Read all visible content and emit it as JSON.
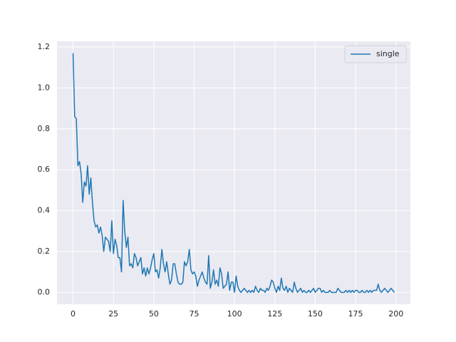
{
  "chart_data": {
    "type": "line",
    "x": [
      0,
      1,
      2,
      3,
      4,
      5,
      6,
      7,
      8,
      9,
      10,
      11,
      12,
      13,
      14,
      15,
      16,
      17,
      18,
      19,
      20,
      21,
      22,
      23,
      24,
      25,
      26,
      27,
      28,
      29,
      30,
      31,
      32,
      33,
      34,
      35,
      36,
      37,
      38,
      39,
      40,
      41,
      42,
      43,
      44,
      45,
      46,
      47,
      48,
      49,
      50,
      51,
      52,
      53,
      54,
      55,
      56,
      57,
      58,
      59,
      60,
      61,
      62,
      63,
      64,
      65,
      66,
      67,
      68,
      69,
      70,
      71,
      72,
      73,
      74,
      75,
      76,
      77,
      78,
      79,
      80,
      81,
      82,
      83,
      84,
      85,
      86,
      87,
      88,
      89,
      90,
      91,
      92,
      93,
      94,
      95,
      96,
      97,
      98,
      99,
      100,
      101,
      102,
      103,
      104,
      105,
      106,
      107,
      108,
      109,
      110,
      111,
      112,
      113,
      114,
      115,
      116,
      117,
      118,
      119,
      120,
      121,
      122,
      123,
      124,
      125,
      126,
      127,
      128,
      129,
      130,
      131,
      132,
      133,
      134,
      135,
      136,
      137,
      138,
      139,
      140,
      141,
      142,
      143,
      144,
      145,
      146,
      147,
      148,
      149,
      150,
      151,
      152,
      153,
      154,
      155,
      156,
      157,
      158,
      159,
      160,
      161,
      162,
      163,
      164,
      165,
      166,
      167,
      168,
      169,
      170,
      171,
      172,
      173,
      174,
      175,
      176,
      177,
      178,
      179,
      180,
      181,
      182,
      183,
      184,
      185,
      186,
      187,
      188,
      189,
      190,
      191,
      192,
      193,
      194,
      195,
      196,
      197,
      198,
      199
    ],
    "series": [
      {
        "name": "single",
        "color": "#1f77b4",
        "values": [
          1.17,
          0.86,
          0.85,
          0.62,
          0.64,
          0.58,
          0.44,
          0.54,
          0.52,
          0.62,
          0.48,
          0.56,
          0.44,
          0.35,
          0.32,
          0.33,
          0.29,
          0.32,
          0.28,
          0.2,
          0.27,
          0.26,
          0.25,
          0.2,
          0.35,
          0.19,
          0.26,
          0.23,
          0.17,
          0.17,
          0.1,
          0.45,
          0.3,
          0.22,
          0.27,
          0.13,
          0.14,
          0.12,
          0.19,
          0.17,
          0.13,
          0.15,
          0.17,
          0.09,
          0.12,
          0.08,
          0.12,
          0.09,
          0.12,
          0.16,
          0.19,
          0.1,
          0.11,
          0.07,
          0.12,
          0.21,
          0.14,
          0.1,
          0.15,
          0.09,
          0.04,
          0.06,
          0.14,
          0.14,
          0.09,
          0.05,
          0.04,
          0.04,
          0.05,
          0.15,
          0.13,
          0.15,
          0.21,
          0.11,
          0.09,
          0.1,
          0.08,
          0.03,
          0.06,
          0.08,
          0.1,
          0.07,
          0.05,
          0.04,
          0.18,
          0.02,
          0.05,
          0.11,
          0.04,
          0.06,
          0.03,
          0.12,
          0.09,
          0.02,
          0.03,
          0.04,
          0.1,
          0.01,
          0.05,
          0.05,
          0.0,
          0.08,
          0.03,
          0.01,
          0.0,
          0.01,
          0.02,
          0.01,
          0.0,
          0.01,
          0.0,
          0.01,
          0.0,
          0.03,
          0.01,
          0.0,
          0.02,
          0.01,
          0.01,
          0.0,
          0.02,
          0.01,
          0.03,
          0.06,
          0.05,
          0.02,
          0.0,
          0.03,
          0.01,
          0.07,
          0.02,
          0.01,
          0.03,
          0.0,
          0.02,
          0.01,
          0.0,
          0.05,
          0.02,
          0.0,
          0.01,
          0.02,
          0.0,
          0.01,
          0.0,
          0.0,
          0.01,
          0.0,
          0.01,
          0.02,
          0.0,
          0.01,
          0.02,
          0.02,
          0.0,
          0.01,
          0.0,
          0.0,
          0.0,
          0.01,
          0.0,
          0.0,
          0.0,
          0.0,
          0.02,
          0.01,
          0.0,
          0.0,
          0.0,
          0.01,
          0.0,
          0.01,
          0.0,
          0.01,
          0.0,
          0.01,
          0.01,
          0.0,
          0.0,
          0.01,
          0.0,
          0.0,
          0.01,
          0.0,
          0.01,
          0.0,
          0.01,
          0.01,
          0.01,
          0.04,
          0.01,
          0.0,
          0.01,
          0.02,
          0.01,
          0.0,
          0.01,
          0.02,
          0.01,
          0.0
        ]
      }
    ],
    "xlim": [
      -9.95,
      208.95
    ],
    "xticks": [
      0,
      25,
      50,
      75,
      100,
      125,
      150,
      175,
      200
    ],
    "ylim": [
      -0.058,
      1.228
    ],
    "yticks": [
      {
        "value": 0,
        "label": "0.0"
      },
      {
        "value": 0.2,
        "label": "0.2"
      },
      {
        "value": 0.4,
        "label": "0.4"
      },
      {
        "value": 0.6,
        "label": "0.6"
      },
      {
        "value": 0.8,
        "label": "0.8"
      },
      {
        "value": 1.0,
        "label": "1.0"
      },
      {
        "value": 1.2,
        "label": "1.2"
      }
    ],
    "grid": true,
    "legend": "upper right"
  }
}
